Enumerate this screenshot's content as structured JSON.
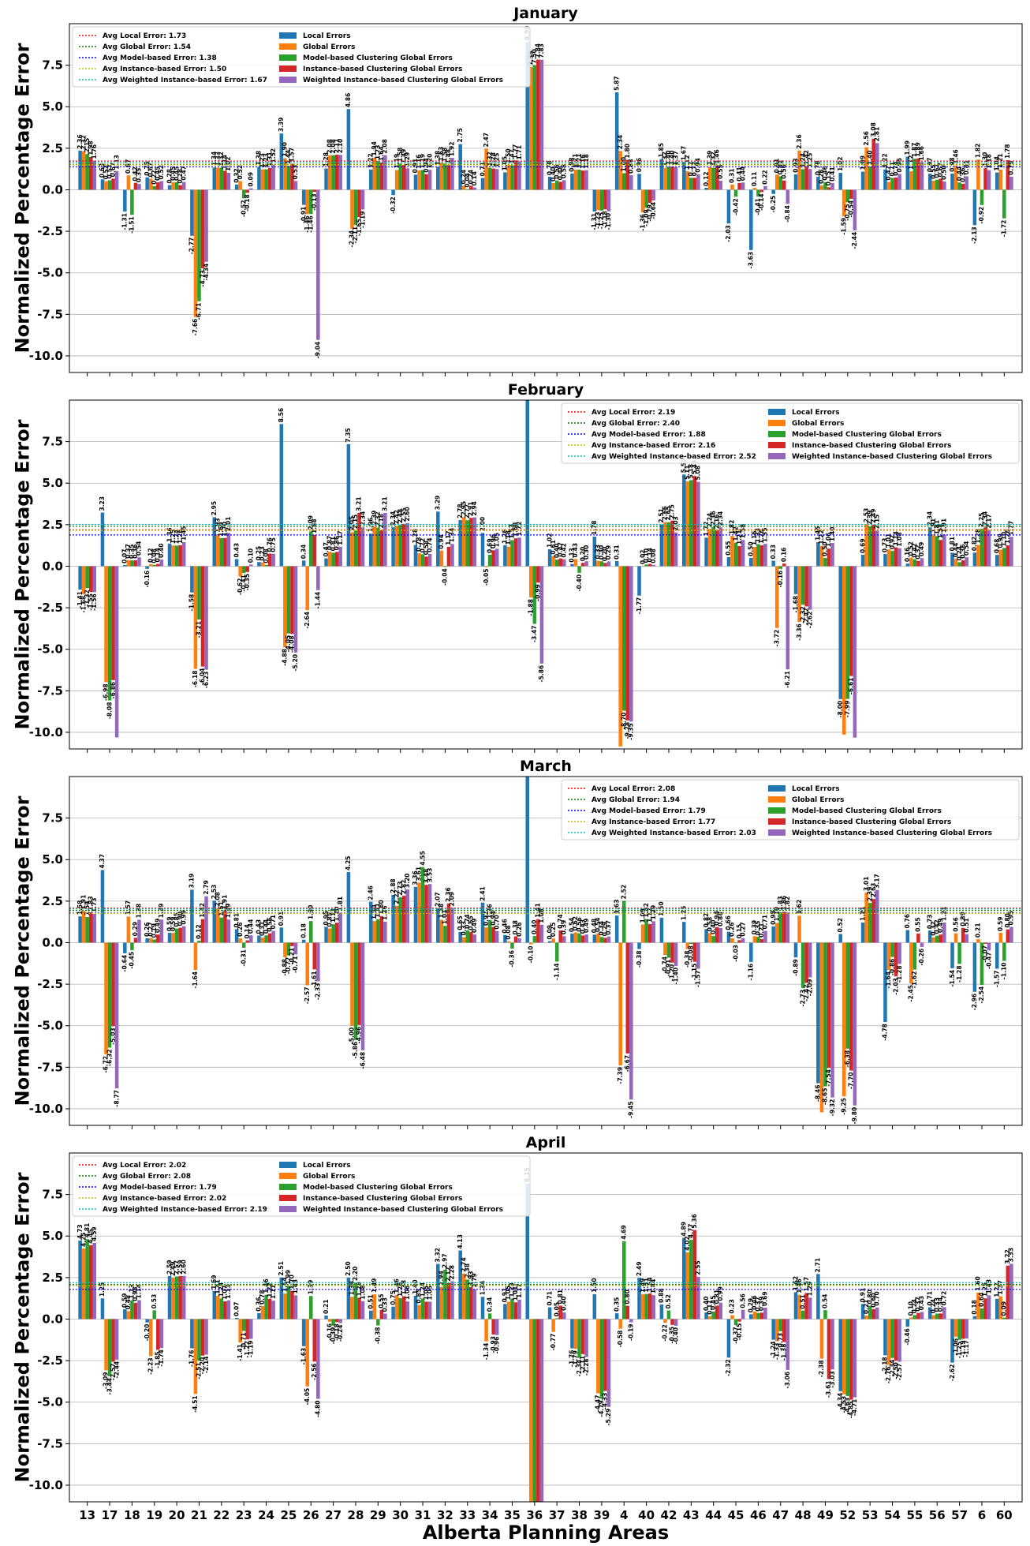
{
  "chart_data": {
    "type": "bar",
    "categories": [
      "13",
      "17",
      "18",
      "19",
      "20",
      "21",
      "22",
      "23",
      "24",
      "25",
      "26",
      "27",
      "28",
      "29",
      "30",
      "31",
      "32",
      "33",
      "34",
      "35",
      "36",
      "37",
      "38",
      "39",
      "4",
      "40",
      "42",
      "43",
      "44",
      "45",
      "46",
      "47",
      "48",
      "49",
      "52",
      "53",
      "54",
      "55",
      "56",
      "57",
      "6",
      "60"
    ],
    "xlabel": "Alberta Planning Areas",
    "ylabel": "Normalized Percentage Error",
    "ylim": [
      -11,
      10
    ],
    "yticks": [
      "-10.0",
      "-7.5",
      "-5.0",
      "-2.5",
      "0.0",
      "2.5",
      "5.0",
      "7.5"
    ],
    "grid": true,
    "series_names": [
      "Local Errors",
      "Global Errors",
      "Model-based Clustering Global Errors",
      "Instance-based Clustering Global Errors",
      "Weighted Instance-based Clustering Global Errors"
    ],
    "series_colors": [
      "#1f77b4",
      "#ff7f0e",
      "#2ca02c",
      "#d62728",
      "#9467bd"
    ],
    "avg_colors": [
      "#ff0000",
      "#008000",
      "#0000ff",
      "#bfbf00",
      "#00bfbf"
    ],
    "panels": [
      {
        "title": "January",
        "legend_position": "top-left",
        "averages": [
          {
            "label": "Avg Local Error: 1.73",
            "value": 1.73
          },
          {
            "label": "Avg Global Error: 1.54",
            "value": 1.54
          },
          {
            "label": "Avg Model-based Error: 1.38",
            "value": 1.38
          },
          {
            "label": "Avg Instance-based Error: 1.50",
            "value": 1.5
          },
          {
            "label": "Avg Weighted Instance-based Error: 1.67",
            "value": 1.67
          }
        ],
        "series": [
          [
            2.36,
            0.63,
            -1.31,
            0.75,
            0.28,
            -2.77,
            1.34,
            0.32,
            1.38,
            3.39,
            -0.91,
            1.28,
            4.86,
            1.22,
            -0.32,
            0.91,
            1.38,
            2.75,
            0.71,
            1.05,
            8.9,
            0.78,
            0.98,
            -1.31,
            5.87,
            0.96,
            1.85,
            1.67,
            0.12,
            -2.03,
            -3.63,
            -0.25,
            0.93,
            0.78,
            1.02,
            1.09,
            1.22,
            1.99,
            0.97,
            0.98,
            -2.13,
            1.04
          ],
          [
            2.32,
            0.52,
            0.87,
            0.67,
            0.45,
            -7.66,
            1.33,
            0.52,
            1.23,
            1.9,
            -1.46,
            2.08,
            -2.34,
            1.94,
            1.19,
            1.16,
            1.63,
            0.24,
            2.47,
            1.5,
            7.39,
            0.4,
            1.21,
            -1.23,
            2.34,
            -1.36,
            1.32,
            1.12,
            1.39,
            0.31,
            0.11,
            0.91,
            2.36,
            0.26,
            -1.59,
            2.56,
            0.47,
            1.12,
            0.55,
            1.46,
            1.82,
            1.21
          ],
          [
            2.15,
            0.57,
            -1.51,
            0.22,
            0.45,
            -6.71,
            1.32,
            -0.52,
            1.23,
            1.44,
            -1.46,
            2.08,
            -2.11,
            1.73,
            1.58,
            1.19,
            1.58,
            0.04,
            1.32,
            1.47,
            7.5,
            0.56,
            1.21,
            -1.25,
            1.0,
            -1.09,
            1.4,
            0.72,
            1.32,
            -0.42,
            -0.41,
            0.81,
            1.24,
            0.46,
            -0.75,
            1.4,
            0.71,
            1.87,
            0.61,
            0.44,
            -0.92,
            -1.72
          ],
          [
            1.98,
            0.67,
            0.42,
            0.45,
            0.28,
            -4.73,
            1.14,
            -0.18,
            1.31,
            1.57,
            -0.13,
            2.11,
            -1.65,
            1.64,
            1.49,
            0.94,
            1.48,
            0.24,
            1.28,
            1.77,
            7.84,
            0.48,
            1.16,
            -1.18,
            1.8,
            -0.79,
            1.4,
            0.72,
            1.46,
            0.41,
            -0.14,
            0.56,
            1.42,
            0.15,
            -0.54,
            3.08,
            0.74,
            1.89,
            0.67,
            0.36,
            1.3,
            1.78
          ],
          [
            1.76,
            1.13,
            0.35,
            0.52,
            0.47,
            -4.34,
            1.02,
            0.09,
            1.52,
            0.53,
            -9.04,
            2.1,
            -1.19,
            2.08,
            1.29,
            1.2,
            1.92,
            0.14,
            1.25,
            1.71,
            7.83,
            0.58,
            1.18,
            -1.3,
            0.88,
            -0.64,
            1.37,
            0.94,
            0.55,
            0.44,
            0.22,
            -0.84,
            1.25,
            0.41,
            -2.44,
            2.81,
            0.95,
            1.66,
            0.5,
            0.81,
            1.18,
            0.79
          ]
        ]
      },
      {
        "title": "February",
        "legend_position": "top-right",
        "averages": [
          {
            "label": "Avg Local Error: 2.19",
            "value": 2.19
          },
          {
            "label": "Avg Global Error: 2.40",
            "value": 2.4
          },
          {
            "label": "Avg Model-based Error: 1.88",
            "value": 1.88
          },
          {
            "label": "Avg Instance-based Error: 2.16",
            "value": 2.16
          },
          {
            "label": "Avg Weighted Instance-based Error: 2.52",
            "value": 2.52
          }
        ],
        "series": [
          [
            -1.41,
            3.23,
            0.07,
            -0.16,
            1.36,
            -1.58,
            2.95,
            0.43,
            0.25,
            8.56,
            0.34,
            0.47,
            7.35,
            1.96,
            2.34,
            1.28,
            3.29,
            2.78,
            2.0,
            1.26,
            11.5,
            1.02,
            0.13,
            1.78,
            0.31,
            -1.77,
            2.51,
            5.52,
            1.72,
            0.55,
            0.5,
            0.33,
            -1.68,
            1.45,
            -8.0,
            0.69,
            0.73,
            0.16,
            2.34,
            0.81,
            0.82,
            0.68
          ],
          [
            -1.68,
            -6.98,
            0.37,
            0.12,
            1.25,
            -6.18,
            1.93,
            -0.62,
            0.23,
            -4.88,
            -2.64,
            0.87,
            2.05,
            2.39,
            2.42,
            0.78,
            0.94,
            2.95,
            -0.05,
            1.18,
            -1.88,
            0.61,
            0.43,
            0.33,
            -10.85,
            0.02,
            2.66,
            5.11,
            2.24,
            1.82,
            1.16,
            -3.72,
            -3.36,
            1.22,
            -10.14,
            2.53,
            1.01,
            0.52,
            1.91,
            0.44,
            1.28,
            0.99
          ],
          [
            -1.32,
            -8.08,
            0.35,
            0.08,
            1.24,
            -3.21,
            1.69,
            -0.41,
            0.08,
            -4.05,
            2.09,
            0.81,
            2.15,
            2.32,
            2.48,
            0.72,
            -0.04,
            2.77,
            0.69,
            1.57,
            -3.47,
            0.4,
            -0.4,
            0.3,
            -8.7,
            0.1,
            2.65,
            5.18,
            2.36,
            1.42,
            1.33,
            -0.16,
            -2.32,
            0.5,
            -7.99,
            2.39,
            0.92,
            0.42,
            1.81,
            0.24,
            2.25,
            1.1
          ],
          [
            -1.55,
            -6.86,
            0.36,
            0.14,
            1.26,
            -6.04,
            1.7,
            -0.35,
            0.76,
            -4.08,
            1.88,
            0.86,
            3.21,
            2.18,
            2.55,
            0.58,
            1.17,
            2.91,
            0.96,
            1.68,
            -0.99,
            0.47,
            0.2,
            0.2,
            -9.28,
            0.14,
            2.75,
            5.43,
            2.16,
            1.21,
            1.26,
            0.16,
            -2.42,
            1.06,
            -6.61,
            2.49,
            1.14,
            0.32,
            1.58,
            0.36,
            2.34,
            1.26
          ],
          [
            -1.56,
            -10.31,
            0.54,
            0.4,
            1.45,
            -6.23,
            2.01,
            0.1,
            0.75,
            -5.2,
            -1.44,
            1.17,
            2.34,
            3.21,
            2.6,
            0.74,
            1.34,
            2.94,
            1.05,
            1.72,
            -5.86,
            0.42,
            0.3,
            0.29,
            -9.35,
            0.08,
            2.03,
            5.08,
            2.34,
            1.58,
            1.35,
            -6.21,
            -2.62,
            1.4,
            -10.32,
            2.15,
            1.08,
            0.49,
            1.91,
            0.54,
            2.17,
            1.77
          ]
        ]
      },
      {
        "title": "March",
        "legend_position": "top-right",
        "averages": [
          {
            "label": "Avg Local Error: 2.08",
            "value": 2.08
          },
          {
            "label": "Avg Global Error: 1.94",
            "value": 1.94
          },
          {
            "label": "Avg Model-based Error: 1.79",
            "value": 1.79
          },
          {
            "label": "Avg Instance-based Error: 1.77",
            "value": 1.77
          },
          {
            "label": "Avg Weighted Instance-based Error: 2.03",
            "value": 2.03
          }
        ],
        "series": [
          [
            1.58,
            4.37,
            -0.64,
            0.26,
            0.59,
            3.19,
            2.53,
            0.81,
            0.43,
            0.91,
            0.18,
            0.95,
            4.25,
            2.46,
            2.88,
            3.36,
            2.07,
            0.65,
            2.41,
            0.46,
            11.5,
            0.09,
            0.54,
            0.48,
            1.63,
            -0.38,
            1.5,
            1.25,
            0.82,
            0.66,
            -1.16,
            0.98,
            -0.89,
            -8.46,
            0.52,
            1.21,
            -4.78,
            0.76,
            0.73,
            -1.54,
            -2.96,
            -1.57
          ],
          [
            1.91,
            -6.72,
            1.57,
            0.27,
            0.59,
            -1.64,
            2.08,
            0.26,
            0.31,
            -0.88,
            -2.57,
            0.85,
            -5.0,
            1.3,
            2.22,
            3.61,
            1.38,
            0.33,
            0.92,
            0.08,
            -0.1,
            0.25,
            0.62,
            0.54,
            -7.39,
            1.09,
            -0.74,
            -0.38,
            0.58,
            0.26,
            0.39,
            1.19,
            1.62,
            -10.21,
            -9.25,
            3.01,
            -1.64,
            -2.45,
            0.32,
            0.56,
            0.21,
            0.59
          ],
          [
            1.54,
            -6.32,
            -0.45,
            0.19,
            0.85,
            0.12,
            1.51,
            -0.31,
            0.44,
            -0.77,
            1.3,
            1.11,
            -5.86,
            1.41,
            2.73,
            4.55,
            1.01,
            0.74,
            1.36,
            -0.36,
            0.4,
            -1.14,
            0.56,
            0.34,
            2.52,
            1.42,
            -0.91,
            -0.08,
            0.4,
            -0.03,
            0.35,
            1.83,
            -2.73,
            -8.65,
            -6.38,
            2.39,
            -0.86,
            -1.62,
            0.42,
            -1.28,
            -2.54,
            -1.1
          ],
          [
            1.83,
            -5.03,
            0.29,
            0.49,
            0.9,
            1.42,
            1.91,
            0.14,
            0.56,
            -0.21,
            -1.61,
            1.2,
            -4.96,
            1.6,
            2.82,
            3.48,
            2.36,
            0.65,
            0.94,
            0.38,
            1.41,
            0.74,
            0.43,
            0.29,
            -6.67,
            1.12,
            -1.2,
            -1.15,
            0.94,
            0.15,
            0.21,
            1.86,
            -2.42,
            -7.54,
            -7.7,
            2.63,
            -2.03,
            0.55,
            0.49,
            0.89,
            -0.07,
            0.8
          ],
          [
            1.73,
            -8.77,
            1.38,
            1.39,
            0.99,
            2.79,
            1.39,
            0.44,
            0.71,
            -0.71,
            -2.33,
            1.81,
            -6.48,
            1.26,
            3.2,
            3.53,
            2.09,
            0.49,
            0.7,
            0.26,
            1.08,
            0.39,
            0.49,
            0.37,
            -9.45,
            1.29,
            -1.4,
            -1.57,
            0.88,
            0.27,
            0.71,
            1.82,
            -2.09,
            -9.32,
            -9.8,
            3.17,
            -1.28,
            -0.26,
            1.21,
            0.51,
            -0.47,
            0.95
          ]
        ]
      },
      {
        "title": "April",
        "legend_position": "top-left",
        "averages": [
          {
            "label": "Avg Local Error: 2.02",
            "value": 2.02
          },
          {
            "label": "Avg Global Error: 2.08",
            "value": 2.08
          },
          {
            "label": "Avg Model-based Error: 1.79",
            "value": 1.79
          },
          {
            "label": "Avg Instance-based Error: 2.02",
            "value": 2.02
          },
          {
            "label": "Avg Weighted Instance-based Error: 2.19",
            "value": 2.19
          }
        ],
        "series": [
          [
            4.73,
            1.25,
            0.59,
            -0.2,
            2.59,
            -1.76,
            1.69,
            0.07,
            0.36,
            2.51,
            -1.63,
            0.21,
            2.5,
            0.51,
            0.75,
            1.4,
            3.32,
            4.13,
            1.34,
            0.91,
            8.15,
            0.71,
            -1.76,
            1.5,
            0.35,
            2.49,
            0.88,
            4.89,
            0.4,
            -2.32,
            0.29,
            -1.24,
            1.62,
            2.71,
            -4.34,
            0.91,
            -2.18,
            -0.46,
            0.71,
            -2.62,
            0.18,
            1.22
          ],
          [
            4.25,
            -3.09,
            0.48,
            -2.23,
            2.49,
            -4.51,
            1.41,
            -1.41,
            0.78,
            1.54,
            -4.05,
            -0.16,
            1.34,
            1.49,
            1.46,
            0.85,
            1.94,
            2.74,
            -1.34,
            1.05,
            -11.5,
            -0.77,
            -1.79,
            -4.47,
            -0.58,
            1.49,
            -0.22,
            4.02,
            0.17,
            0.23,
            0.46,
            -1.33,
            1.46,
            -2.38,
            -4.53,
            0.21,
            -2.76,
            0.1,
            0.24,
            -1.06,
            1.6,
            1.37
          ],
          [
            4.81,
            -3.44,
            1.13,
            0.53,
            2.57,
            -2.51,
            1.24,
            -0.71,
            1.46,
            1.99,
            1.39,
            -0.39,
            2.2,
            -0.38,
            1.26,
            1.24,
            2.97,
            2.38,
            0.34,
            1.23,
            -11.5,
            0.05,
            -2.34,
            -4.79,
            4.69,
            1.51,
            0.52,
            4.77,
            0.45,
            -0.37,
            0.37,
            -0.73,
            0.51,
            0.54,
            -4.63,
            0.8,
            -2.34,
            0.24,
            0.33,
            -1.25,
            0.64,
            0.09
          ],
          [
            4.45,
            -2.57,
            0.98,
            -1.85,
            2.59,
            -2.2,
            1.07,
            -1.22,
            1.22,
            1.7,
            -2.56,
            -0.18,
            1.28,
            0.55,
            1.38,
            1.05,
            2.17,
            1.93,
            -0.93,
            1.01,
            -11.5,
            0.81,
            -2.11,
            -4.33,
            0.8,
            1.54,
            -0.35,
            5.36,
            0.81,
            -0.15,
            0.39,
            -1.38,
            1.57,
            -3.61,
            -4.85,
            0.6,
            -2.5,
            0.37,
            0.34,
            -1.19,
            1.25,
            3.22
          ],
          [
            4.59,
            -2.44,
            1.14,
            -1.74,
            2.6,
            -2.14,
            1.13,
            -1.19,
            1.11,
            1.43,
            -4.8,
            -0.24,
            1.08,
            0.33,
            1.06,
            1.05,
            2.28,
            1.79,
            -0.96,
            1.17,
            -11.5,
            0.4,
            -2.28,
            -5.29,
            -0.19,
            1.44,
            -0.4,
            2.55,
            0.99,
            0.56,
            0.69,
            -3.06,
            1.29,
            -3.03,
            -4.71,
            0.7,
            -2.57,
            0.43,
            0.72,
            -1.17,
            1.43,
            3.33
          ]
        ]
      }
    ]
  }
}
